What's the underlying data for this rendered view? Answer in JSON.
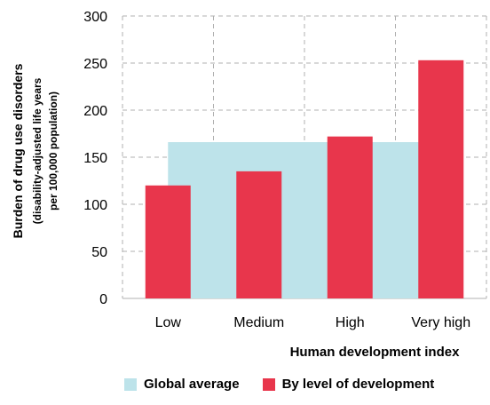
{
  "chart_data": {
    "type": "bar",
    "categories": [
      "Low",
      "Medium",
      "High",
      "Very high"
    ],
    "series": [
      {
        "name": "By level of development",
        "values": [
          120,
          135,
          172,
          253
        ],
        "color": "#e8364c"
      }
    ],
    "global_average": {
      "name": "Global average",
      "value": 166,
      "color": "#bde3ea"
    },
    "xlabel": "Human development index",
    "ylabel_lines": [
      "Burden of drug use disorders",
      "(disability-adjusted life years",
      "per 100,000 population)"
    ],
    "ylim": [
      0,
      300
    ],
    "yticks": [
      "0",
      "50",
      "100",
      "150",
      "200",
      "250",
      "300"
    ],
    "grid": true,
    "legend_placement": "bottom"
  }
}
